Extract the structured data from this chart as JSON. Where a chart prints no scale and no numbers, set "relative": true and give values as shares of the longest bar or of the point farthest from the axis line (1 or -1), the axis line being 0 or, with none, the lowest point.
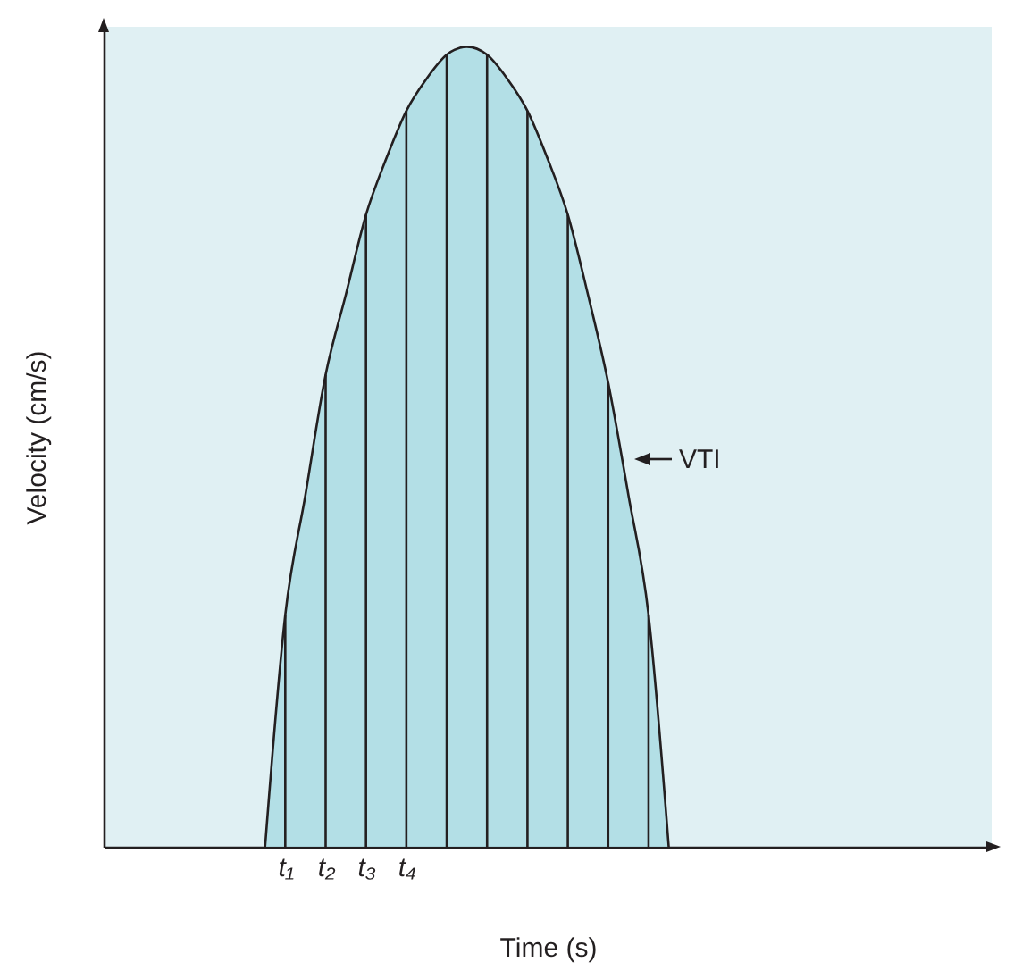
{
  "chart_data": {
    "type": "area",
    "relative": true,
    "xlabel": "Time (s)",
    "ylabel": "Velocity (cm/s)",
    "grid": false,
    "categories": [
      null,
      null,
      null,
      null,
      null,
      null,
      null,
      null,
      null,
      "t₁",
      null,
      "t₂",
      null,
      "t₃",
      null,
      "t₄",
      null,
      null,
      null,
      null,
      null,
      null,
      null,
      null,
      null,
      null,
      null,
      null,
      null,
      null,
      null,
      null,
      null,
      null,
      null,
      null,
      null,
      null,
      null,
      null,
      null,
      null,
      null,
      null,
      null
    ],
    "series": [
      {
        "color": "#a0d7e0",
        "values": [
          null,
          null,
          null,
          null,
          null,
          null,
          null,
          null,
          0,
          0.29,
          0.44,
          0.59,
          0.69,
          0.79,
          0.86,
          0.92,
          0.96,
          0.99,
          1,
          0.99,
          0.96,
          0.92,
          0.86,
          0.79,
          0.69,
          0.58,
          0.44,
          0.29,
          0,
          null,
          null,
          null,
          null,
          null,
          null,
          null,
          null,
          null,
          null,
          null,
          null,
          null,
          null,
          null,
          null
        ]
      },
      {
        "type": "bar",
        "color": "#231f20",
        "values": [
          null,
          null,
          null,
          null,
          null,
          null,
          null,
          null,
          null,
          0.29,
          null,
          0.59,
          null,
          0.79,
          null,
          0.92,
          null,
          0.99,
          null,
          0.99,
          null,
          0.92,
          null,
          0.79,
          null,
          0.58,
          null,
          0.29,
          null,
          null,
          null,
          null,
          null,
          null,
          null,
          null,
          null,
          null,
          null,
          null,
          null,
          null,
          null,
          null,
          null
        ]
      }
    ],
    "annotations": [
      "VTI"
    ]
  }
}
